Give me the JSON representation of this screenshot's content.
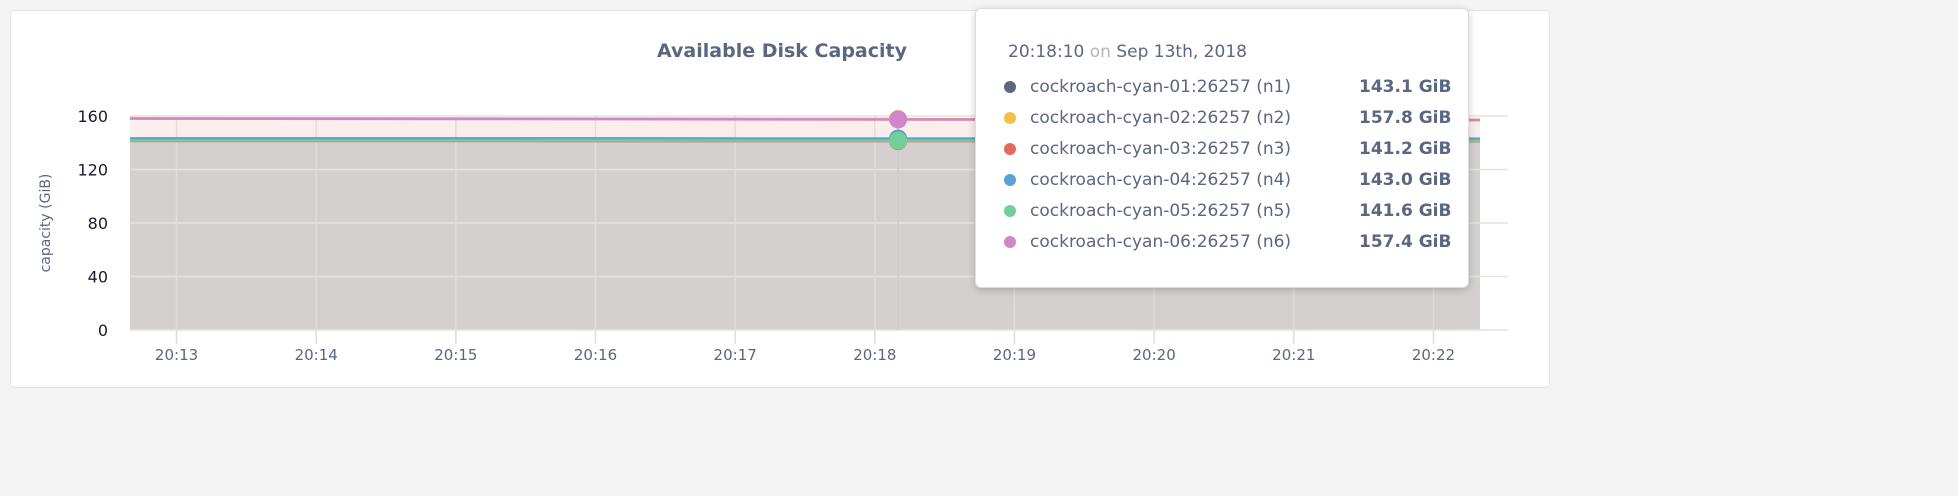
{
  "chart_data": {
    "type": "area",
    "title": "Available Disk Capacity",
    "ylabel": "capacity (GiB)",
    "ylim": [
      0,
      160
    ],
    "yticks": [
      "0",
      "40",
      "80",
      "120",
      "160"
    ],
    "xticks": [
      "20:13",
      "20:14",
      "20:15",
      "20:16",
      "20:17",
      "20:18",
      "20:19",
      "20:20",
      "20:21",
      "20:22"
    ],
    "xlim": [
      "20:12:40",
      "20:22:20"
    ],
    "grid": true,
    "x": [
      "20:12:40",
      "20:15:00",
      "20:18:10",
      "20:22:20"
    ],
    "series": [
      {
        "name": "cockroach-cyan-01:26257 (n1)",
        "color": "#5b6680",
        "values": [
          143.2,
          143.2,
          143.1,
          143.0
        ]
      },
      {
        "name": "cockroach-cyan-02:26257 (n2)",
        "color": "#f0c04a",
        "values": [
          158.4,
          158.2,
          157.8,
          157.3
        ]
      },
      {
        "name": "cockroach-cyan-03:26257 (n3)",
        "color": "#e46a5e",
        "values": [
          141.3,
          141.3,
          141.2,
          141.1
        ]
      },
      {
        "name": "cockroach-cyan-04:26257 (n4)",
        "color": "#5aa0d6",
        "values": [
          143.1,
          143.1,
          143.0,
          142.9
        ]
      },
      {
        "name": "cockroach-cyan-05:26257 (n5)",
        "color": "#6fd09a",
        "values": [
          141.7,
          141.7,
          141.6,
          141.5
        ]
      },
      {
        "name": "cockroach-cyan-06:26257 (n6)",
        "color": "#d086c8",
        "values": [
          158.0,
          157.8,
          157.4,
          156.9
        ]
      }
    ]
  },
  "tooltip": {
    "time": "20:18:10",
    "on": "on",
    "date": "Sep 13th, 2018",
    "hover_x": "20:18:10",
    "rows": [
      {
        "label": "cockroach-cyan-01:26257 (n1)",
        "value": "143.1 GiB",
        "color": "#5b6680"
      },
      {
        "label": "cockroach-cyan-02:26257 (n2)",
        "value": "157.8 GiB",
        "color": "#f0c04a"
      },
      {
        "label": "cockroach-cyan-03:26257 (n3)",
        "value": "141.2 GiB",
        "color": "#e46a5e"
      },
      {
        "label": "cockroach-cyan-04:26257 (n4)",
        "value": "143.0 GiB",
        "color": "#5aa0d6"
      },
      {
        "label": "cockroach-cyan-05:26257 (n5)",
        "value": "141.6 GiB",
        "color": "#6fd09a"
      },
      {
        "label": "cockroach-cyan-06:26257 (n6)",
        "value": "157.4 GiB",
        "color": "#d086c8"
      }
    ]
  }
}
